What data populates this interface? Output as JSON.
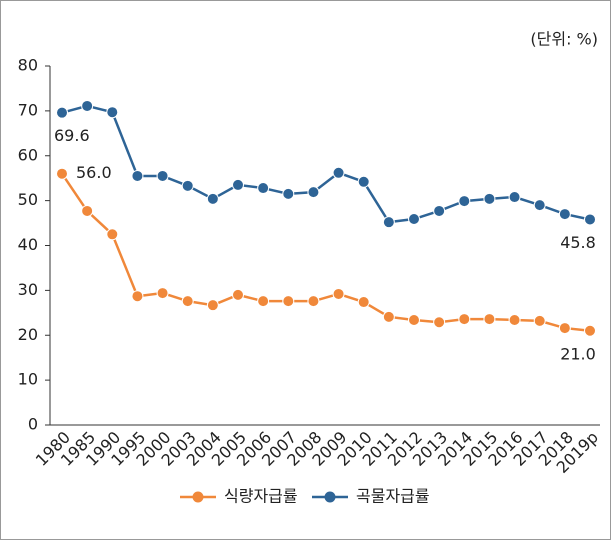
{
  "chart_data": {
    "type": "line",
    "unit_label": "(단위: %)",
    "categories": [
      "1980",
      "1985",
      "1990",
      "1995",
      "2000",
      "2003",
      "2004",
      "2005",
      "2006",
      "2007",
      "2008",
      "2009",
      "2010",
      "2011",
      "2012",
      "2013",
      "2014",
      "2015",
      "2016",
      "2017",
      "2018",
      "2019p"
    ],
    "series": [
      {
        "name": "식량자급률",
        "color": "#f0883a",
        "values": [
          56.0,
          47.7,
          42.5,
          28.7,
          29.4,
          27.6,
          26.7,
          29.0,
          27.6,
          27.6,
          27.6,
          29.2,
          27.4,
          24.1,
          23.4,
          22.9,
          23.6,
          23.6,
          23.4,
          23.2,
          21.6,
          21.0
        ],
        "value_labels": [
          "56.0",
          null,
          null,
          null,
          null,
          null,
          null,
          null,
          null,
          null,
          null,
          null,
          null,
          null,
          null,
          null,
          null,
          null,
          null,
          null,
          null,
          "21.0"
        ]
      },
      {
        "name": "곡물자급률",
        "color": "#2e6496",
        "values": [
          69.6,
          71.1,
          69.7,
          55.5,
          55.5,
          53.3,
          50.4,
          53.5,
          52.8,
          51.5,
          51.9,
          56.2,
          54.2,
          45.2,
          45.9,
          47.7,
          49.9,
          50.4,
          50.8,
          49.0,
          47.0,
          45.8
        ],
        "value_labels": [
          "69.6",
          null,
          null,
          null,
          null,
          null,
          null,
          null,
          null,
          null,
          null,
          null,
          null,
          null,
          null,
          null,
          null,
          null,
          null,
          null,
          null,
          "45.8"
        ]
      }
    ],
    "ylim": [
      0,
      80
    ],
    "yticks": [
      0,
      10,
      20,
      30,
      40,
      50,
      60,
      70,
      80
    ],
    "grid": false,
    "legend": "bottom"
  }
}
